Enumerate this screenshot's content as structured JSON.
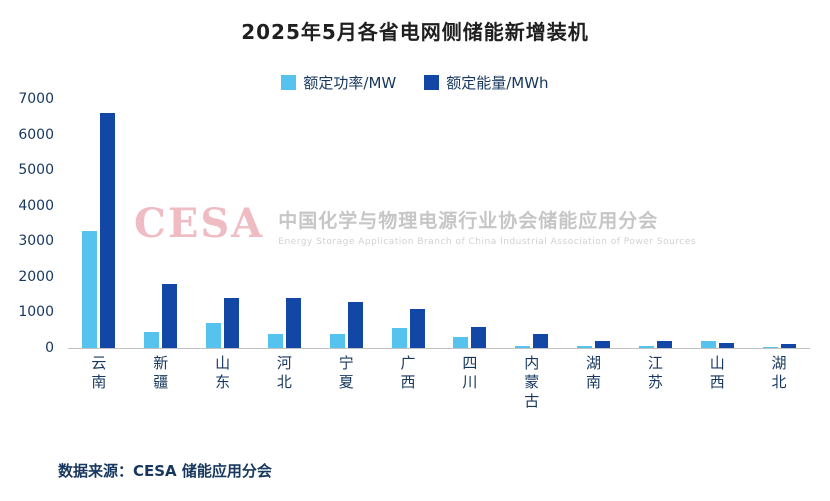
{
  "title": "2025年5月各省电网侧储能新增装机",
  "footer": "数据来源：CESA 储能应用分会",
  "watermark": {
    "logo": "CESA",
    "text": "中国化学与物理电源行业协会储能应用分会",
    "subtext": "Energy Storage Application Branch of China Industrial Association of Power Sources"
  },
  "colors": {
    "power_bar": "#55C3EE",
    "energy_bar": "#1247A5",
    "axis_text": "#17375E"
  },
  "chart_data": {
    "type": "bar",
    "title": "2025年5月各省电网侧储能新增装机",
    "categories": [
      "云南",
      "新疆",
      "山东",
      "河北",
      "宁夏",
      "广西",
      "四川",
      "内蒙古",
      "湖南",
      "江苏",
      "山西",
      "湖北"
    ],
    "series": [
      {
        "name": "额定功率/MW",
        "color": "#55C3EE",
        "values": [
          3300,
          450,
          700,
          400,
          400,
          550,
          300,
          70,
          70,
          70,
          200,
          40
        ]
      },
      {
        "name": "额定能量/MWh",
        "color": "#1247A5",
        "values": [
          6600,
          1800,
          1400,
          1400,
          1300,
          1100,
          600,
          400,
          200,
          200,
          150,
          100
        ]
      }
    ],
    "xlabel": "",
    "ylabel": "",
    "ylim": [
      0,
      7000
    ],
    "yticks": [
      0,
      1000,
      2000,
      3000,
      4000,
      5000,
      6000,
      7000
    ],
    "grid": false,
    "legend_position": "top"
  }
}
